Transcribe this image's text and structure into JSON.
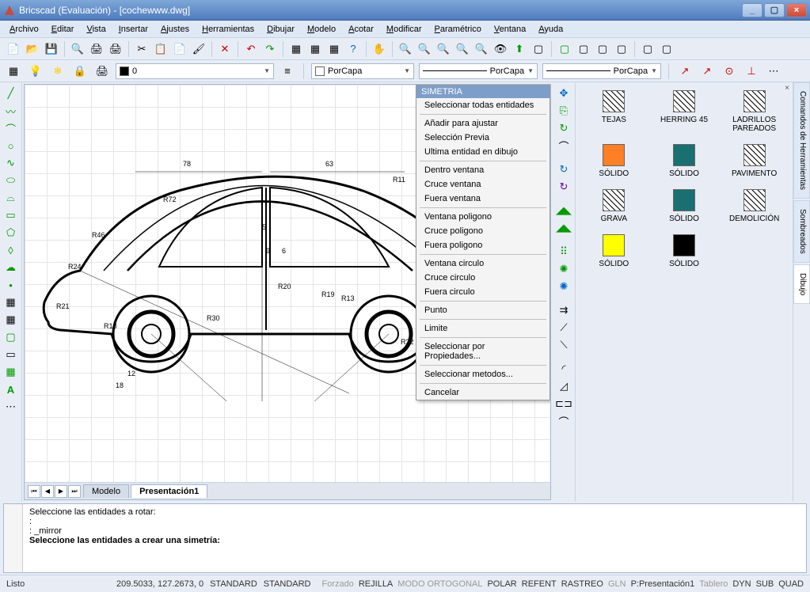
{
  "window": {
    "title": "Bricscad (Evaluación) - [cochewww.dwg]",
    "buttons": {
      "min": "_",
      "max": "▢",
      "close": "×"
    }
  },
  "menu": [
    "Archivo",
    "Editar",
    "Vista",
    "Insertar",
    "Ajustes",
    "Herramientas",
    "Dibujar",
    "Modelo",
    "Acotar",
    "Modificar",
    "Paramétrico",
    "Ventana",
    "Ayuda"
  ],
  "layer": {
    "current": "0"
  },
  "porcapa": "PorCapa",
  "sheets": {
    "modelo": "Modelo",
    "pres1": "Presentación1"
  },
  "context": {
    "title": "SIMETRIA",
    "groups": [
      [
        "Seleccionar todas entidades"
      ],
      [
        "Añadir para ajustar",
        "Selección Previa",
        "Ultima entidad en dibujo"
      ],
      [
        "Dentro ventana",
        "Cruce ventana",
        "Fuera ventana"
      ],
      [
        "Ventana poligono",
        "Cruce poligono",
        "Fuera poligono"
      ],
      [
        "Ventana circulo",
        "Cruce circulo",
        "Fuera circulo"
      ],
      [
        "Punto"
      ],
      [
        "Limite"
      ],
      [
        "Seleccionar por Propiedades..."
      ],
      [
        "Seleccionar metodos..."
      ],
      [
        "Cancelar"
      ]
    ]
  },
  "palette": {
    "items": [
      {
        "label": "TEJAS",
        "type": "hatch",
        "hatch": "tejas"
      },
      {
        "label": "HERRING 45",
        "type": "hatch",
        "hatch": "herring"
      },
      {
        "label": "LADRILLOS PAREADOS",
        "type": "hatch",
        "hatch": "brick"
      },
      {
        "label": "SÓLIDO",
        "type": "solid",
        "color": "#ff7f27"
      },
      {
        "label": "SÓLIDO",
        "type": "solid",
        "color": "#1a7070"
      },
      {
        "label": "PAVIMENTO",
        "type": "hatch",
        "hatch": "pave"
      },
      {
        "label": "GRAVA",
        "type": "hatch",
        "hatch": "gravel"
      },
      {
        "label": "SÓLIDO",
        "type": "solid",
        "color": "#1a7070"
      },
      {
        "label": "DEMOLICIÓN",
        "type": "hatch",
        "hatch": "demo"
      },
      {
        "label": "SÓLIDO",
        "type": "solid",
        "color": "#ffff00"
      },
      {
        "label": "SÓLIDO",
        "type": "solid",
        "color": "#000000"
      }
    ]
  },
  "vtabs": [
    "Comandos de Herramientas",
    "Sombreados",
    "Dibujo"
  ],
  "command": {
    "lines": [
      "Seleccione las entidades a rotar:",
      ":",
      ": _mirror"
    ],
    "prompt": "Seleccione las entidades a crear una simetría:"
  },
  "status": {
    "ready": "Listo",
    "coords": "209.5033, 127.2673, 0",
    "std1": "STANDARD",
    "std2": "STANDARD",
    "items": [
      {
        "t": "Forzado",
        "dim": true
      },
      {
        "t": "REJILLA",
        "dim": false
      },
      {
        "t": "MODO ORTOGONAL",
        "dim": true
      },
      {
        "t": "POLAR",
        "dim": false
      },
      {
        "t": "REFENT",
        "dim": false
      },
      {
        "t": "RASTREO",
        "dim": false
      },
      {
        "t": "GLN",
        "dim": true
      },
      {
        "t": "P:Presentación1",
        "dim": false
      },
      {
        "t": "Tablero",
        "dim": true
      },
      {
        "t": "DYN",
        "dim": false
      },
      {
        "t": "SUB",
        "dim": false
      },
      {
        "t": "QUAD",
        "dim": false
      }
    ]
  },
  "drawing": {
    "dims": [
      "78",
      "63",
      "R11",
      "R72",
      "R46",
      "R24",
      "R21",
      "R18",
      "R30",
      "R20",
      "R19",
      "R13",
      "R22",
      "12",
      "18",
      "9",
      "6",
      "5"
    ]
  }
}
